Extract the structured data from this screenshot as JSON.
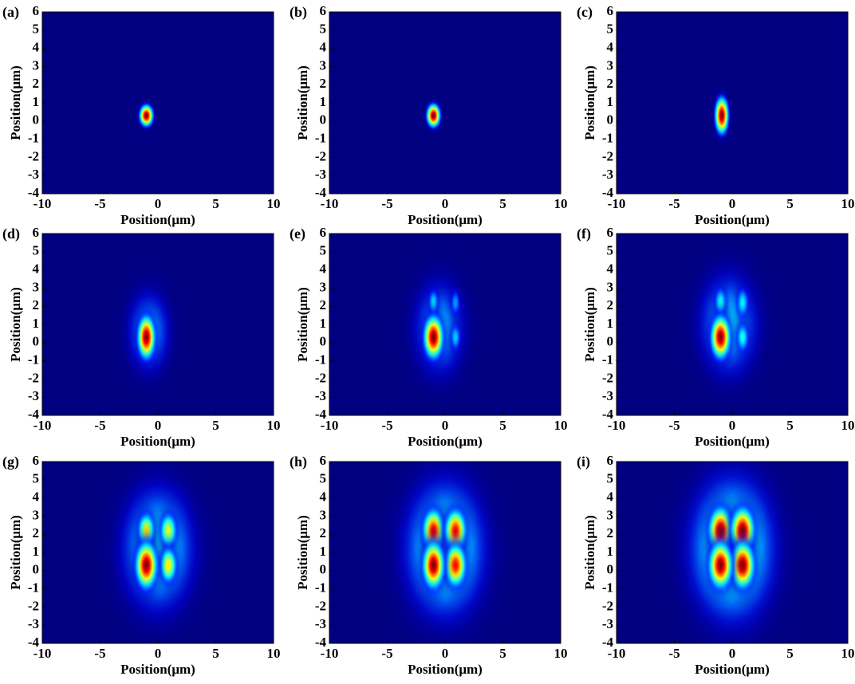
{
  "chart_data": [
    {
      "type": "heatmap",
      "label": "(a)",
      "xlabel": "Position(μm)",
      "ylabel": "Position(μm)",
      "xlim": [
        -10,
        10
      ],
      "ylim": [
        -4,
        6
      ],
      "xticks": [
        -10,
        -5,
        0,
        5,
        10
      ],
      "yticks": [
        -4,
        -3,
        -2,
        -1,
        0,
        1,
        2,
        3,
        4,
        5,
        6
      ],
      "spots": [
        {
          "x": -1,
          "y": 0.3,
          "sx": 0.35,
          "sy": 0.35,
          "peak": 1
        }
      ]
    },
    {
      "type": "heatmap",
      "label": "(b)",
      "xlabel": "Position(μm)",
      "ylabel": "Position(μm)",
      "xlim": [
        -10,
        10
      ],
      "ylim": [
        -4,
        6
      ],
      "xticks": [
        -10,
        -5,
        0,
        5,
        10
      ],
      "yticks": [
        -4,
        -3,
        -2,
        -1,
        0,
        1,
        2,
        3,
        4,
        5,
        6
      ],
      "spots": [
        {
          "x": -1,
          "y": 0.3,
          "sx": 0.35,
          "sy": 0.38,
          "peak": 1
        }
      ]
    },
    {
      "type": "heatmap",
      "label": "(c)",
      "xlabel": "Position(μm)",
      "ylabel": "Position(μm)",
      "xlim": [
        -10,
        10
      ],
      "ylim": [
        -4,
        6
      ],
      "xticks": [
        -10,
        -5,
        0,
        5,
        10
      ],
      "yticks": [
        -4,
        -3,
        -2,
        -1,
        0,
        1,
        2,
        3,
        4,
        5,
        6
      ],
      "spots": [
        {
          "x": -0.9,
          "y": 0.3,
          "sx": 0.35,
          "sy": 0.6,
          "peak": 1
        }
      ]
    },
    {
      "type": "heatmap",
      "label": "(d)",
      "xlabel": "Position(μm)",
      "ylabel": "Position(μm)",
      "xlim": [
        -10,
        10
      ],
      "ylim": [
        -4,
        6
      ],
      "xticks": [
        -10,
        -5,
        0,
        5,
        10
      ],
      "yticks": [
        -4,
        -3,
        -2,
        -1,
        0,
        1,
        2,
        3,
        4,
        5,
        6
      ],
      "spots": [
        {
          "x": -0.8,
          "y": 0.6,
          "sx": 1.3,
          "sy": 1.6,
          "peak": 0.3
        },
        {
          "x": -1,
          "y": 0.3,
          "sx": 0.45,
          "sy": 0.7,
          "peak": 1
        }
      ]
    },
    {
      "type": "heatmap",
      "label": "(e)",
      "xlabel": "Position(μm)",
      "ylabel": "Position(μm)",
      "xlim": [
        -10,
        10
      ],
      "ylim": [
        -4,
        6
      ],
      "xticks": [
        -10,
        -5,
        0,
        5,
        10
      ],
      "yticks": [
        -4,
        -3,
        -2,
        -1,
        0,
        1,
        2,
        3,
        4,
        5,
        6
      ],
      "spots": [
        {
          "x": -0.5,
          "y": 0.8,
          "sx": 1.6,
          "sy": 1.9,
          "peak": 0.3
        },
        {
          "x": -1,
          "y": 2.2,
          "sx": 0.3,
          "sy": 0.5,
          "peak": 0.35
        },
        {
          "x": 0.9,
          "y": 0.3,
          "sx": 0.3,
          "sy": 0.5,
          "peak": 0.33
        },
        {
          "x": 0.9,
          "y": 2.2,
          "sx": 0.3,
          "sy": 0.5,
          "peak": 0.28
        },
        {
          "x": -1,
          "y": 0.3,
          "sx": 0.5,
          "sy": 0.7,
          "peak": 1
        }
      ]
    },
    {
      "type": "heatmap",
      "label": "(f)",
      "xlabel": "Position(μm)",
      "ylabel": "Position(μm)",
      "xlim": [
        -10,
        10
      ],
      "ylim": [
        -4,
        6
      ],
      "xticks": [
        -10,
        -5,
        0,
        5,
        10
      ],
      "yticks": [
        -4,
        -3,
        -2,
        -1,
        0,
        1,
        2,
        3,
        4,
        5,
        6
      ],
      "spots": [
        {
          "x": -0.3,
          "y": 1,
          "sx": 1.8,
          "sy": 2,
          "peak": 0.33
        },
        {
          "x": -1,
          "y": 2.2,
          "sx": 0.35,
          "sy": 0.55,
          "peak": 0.4
        },
        {
          "x": 0.9,
          "y": 0.3,
          "sx": 0.35,
          "sy": 0.55,
          "peak": 0.4
        },
        {
          "x": 0.9,
          "y": 2.2,
          "sx": 0.35,
          "sy": 0.55,
          "peak": 0.37
        },
        {
          "x": -1,
          "y": 0.3,
          "sx": 0.5,
          "sy": 0.7,
          "peak": 1
        }
      ]
    },
    {
      "type": "heatmap",
      "label": "(g)",
      "xlabel": "Position(μm)",
      "ylabel": "Position(μm)",
      "xlim": [
        -10,
        10
      ],
      "ylim": [
        -4,
        6
      ],
      "xticks": [
        -10,
        -5,
        0,
        5,
        10
      ],
      "yticks": [
        -4,
        -3,
        -2,
        -1,
        0,
        1,
        2,
        3,
        4,
        5,
        6
      ],
      "spots": [
        {
          "x": 0,
          "y": 1.2,
          "sx": 2.2,
          "sy": 2.4,
          "peak": 0.38
        },
        {
          "x": -1,
          "y": 2.2,
          "sx": 0.45,
          "sy": 0.6,
          "peak": 0.65
        },
        {
          "x": 0.9,
          "y": 2.2,
          "sx": 0.45,
          "sy": 0.6,
          "peak": 0.6
        },
        {
          "x": 0.9,
          "y": 0.3,
          "sx": 0.45,
          "sy": 0.6,
          "peak": 0.65
        },
        {
          "x": -1,
          "y": 0.3,
          "sx": 0.55,
          "sy": 0.75,
          "peak": 1
        }
      ]
    },
    {
      "type": "heatmap",
      "label": "(h)",
      "xlabel": "Position(μm)",
      "ylabel": "Position(μm)",
      "xlim": [
        -10,
        10
      ],
      "ylim": [
        -4,
        6
      ],
      "xticks": [
        -10,
        -5,
        0,
        5,
        10
      ],
      "yticks": [
        -4,
        -3,
        -2,
        -1,
        0,
        1,
        2,
        3,
        4,
        5,
        6
      ],
      "spots": [
        {
          "x": 0,
          "y": 1.2,
          "sx": 2.4,
          "sy": 2.6,
          "peak": 0.42
        },
        {
          "x": -1,
          "y": 2.2,
          "sx": 0.55,
          "sy": 0.7,
          "peak": 0.9
        },
        {
          "x": 0.9,
          "y": 2.2,
          "sx": 0.55,
          "sy": 0.7,
          "peak": 0.88
        },
        {
          "x": 0.9,
          "y": 0.3,
          "sx": 0.55,
          "sy": 0.7,
          "peak": 0.88
        },
        {
          "x": -1,
          "y": 0.3,
          "sx": 0.55,
          "sy": 0.75,
          "peak": 1
        }
      ]
    },
    {
      "type": "heatmap",
      "label": "(i)",
      "xlabel": "Position(μm)",
      "ylabel": "Position(μm)",
      "xlim": [
        -10,
        10
      ],
      "ylim": [
        -4,
        6
      ],
      "xticks": [
        -10,
        -5,
        0,
        5,
        10
      ],
      "yticks": [
        -4,
        -3,
        -2,
        -1,
        0,
        1,
        2,
        3,
        4,
        5,
        6
      ],
      "spots": [
        {
          "x": 0,
          "y": 1.2,
          "sx": 2.5,
          "sy": 2.7,
          "peak": 0.45
        },
        {
          "x": -1,
          "y": 2.2,
          "sx": 0.6,
          "sy": 0.75,
          "peak": 1
        },
        {
          "x": 0.9,
          "y": 2.2,
          "sx": 0.6,
          "sy": 0.75,
          "peak": 1
        },
        {
          "x": 0.9,
          "y": 0.3,
          "sx": 0.6,
          "sy": 0.75,
          "peak": 1
        },
        {
          "x": -1,
          "y": 0.3,
          "sx": 0.6,
          "sy": 0.75,
          "peak": 1
        }
      ]
    }
  ]
}
